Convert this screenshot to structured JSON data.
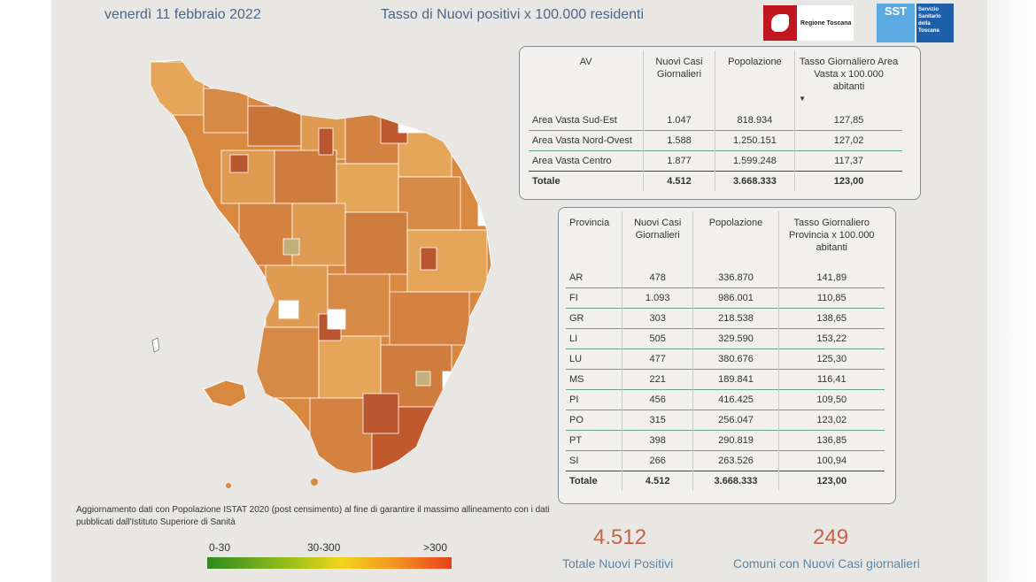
{
  "header": {
    "date": "venerdì 11 febbraio 2022",
    "title": "Tasso di Nuovi positivi x 100.000 residenti",
    "logo_regione": "Regione Toscana",
    "logo_sst_short": "SST",
    "logo_sst_text": "Servizio Sanitario della Toscana"
  },
  "av_table": {
    "headers": [
      "AV",
      "Nuovi Casi Giornalieri",
      "Popolazione",
      "Tasso Giornaliero Area Vasta x 100.000 abitanti"
    ],
    "rows": [
      [
        "Area Vasta Sud-Est",
        "1.047",
        "818.934",
        "127,85"
      ],
      [
        "Area Vasta Nord-Ovest",
        "1.588",
        "1.250.151",
        "127,02"
      ],
      [
        "Area Vasta Centro",
        "1.877",
        "1.599.248",
        "117,37"
      ]
    ],
    "total": [
      "Totale",
      "4.512",
      "3.668.333",
      "123,00"
    ]
  },
  "prov_table": {
    "headers": [
      "Provincia",
      "Nuovi Casi Giornalieri",
      "Popolazione",
      "Tasso Giornaliero Provincia x 100.000 abitanti"
    ],
    "rows": [
      [
        "AR",
        "478",
        "336.870",
        "141,89"
      ],
      [
        "FI",
        "1.093",
        "986.001",
        "110,85"
      ],
      [
        "GR",
        "303",
        "218.538",
        "138,65"
      ],
      [
        "LI",
        "505",
        "329.590",
        "153,22"
      ],
      [
        "LU",
        "477",
        "380.676",
        "125,30"
      ],
      [
        "MS",
        "221",
        "189.841",
        "116,41"
      ],
      [
        "PI",
        "456",
        "416.425",
        "109,50"
      ],
      [
        "PO",
        "315",
        "256.047",
        "123,02"
      ],
      [
        "PT",
        "398",
        "290.819",
        "136,85"
      ],
      [
        "SI",
        "266",
        "263.526",
        "100,94"
      ]
    ],
    "total": [
      "Totale",
      "4.512",
      "3.668.333",
      "123,00"
    ]
  },
  "kpis": {
    "nuovi_positivi_value": "4.512",
    "nuovi_positivi_label": "Totale Nuovi Positivi",
    "comuni_value": "249",
    "comuni_label": "Comuni con Nuovi Casi giornalieri"
  },
  "note": "Aggiornamento dati con Popolazione ISTAT 2020 (post censimento) al fine di garantire il massimo allineamento con i dati pubblicati dall'Istituto Superiore di Sanità",
  "legend": {
    "labels": [
      "0-30",
      "30-300",
      ">300"
    ]
  },
  "colors": {
    "kpi": "#c7634a",
    "label": "#5a86a6",
    "map_dark": "#c0582e",
    "map_mid": "#d9893f",
    "map_light": "#e6a659"
  }
}
